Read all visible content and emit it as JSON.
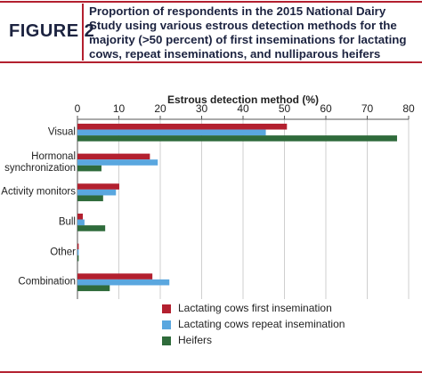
{
  "figure_label": "FIGURE 2",
  "chart_data": {
    "type": "hbar",
    "title": "Proportion of respondents in the 2015 National Dairy\nStudy using various estrous detection methods for the\nmajority (>50 percent) of first inseminations for lactating\ncows, repeat inseminations, and nulliparous heifers",
    "xlabel": "Estrous detection method (%)",
    "categories": [
      "Visual",
      "Hormonal\nsynchronization",
      "Activity monitors",
      "Bull",
      "Other",
      "Combination"
    ],
    "series": [
      {
        "name": "Lactating cows first insemination",
        "color": "#b3202f",
        "values": [
          50.6,
          17.5,
          10.1,
          1.3,
          0.3,
          18.1
        ]
      },
      {
        "name": "Lactating cows repeat insemination",
        "color": "#5aa7df",
        "values": [
          45.5,
          19.4,
          9.3,
          1.7,
          0.3,
          22.2
        ]
      },
      {
        "name": "Heifers",
        "color": "#2f6b3b",
        "values": [
          77.2,
          5.8,
          6.2,
          6.7,
          0.3,
          7.8
        ]
      }
    ],
    "xlim": [
      0,
      80
    ],
    "xticks": [
      0,
      10,
      20,
      30,
      40,
      50,
      60,
      70,
      80
    ],
    "grid": true,
    "legend_position": "bottom"
  }
}
